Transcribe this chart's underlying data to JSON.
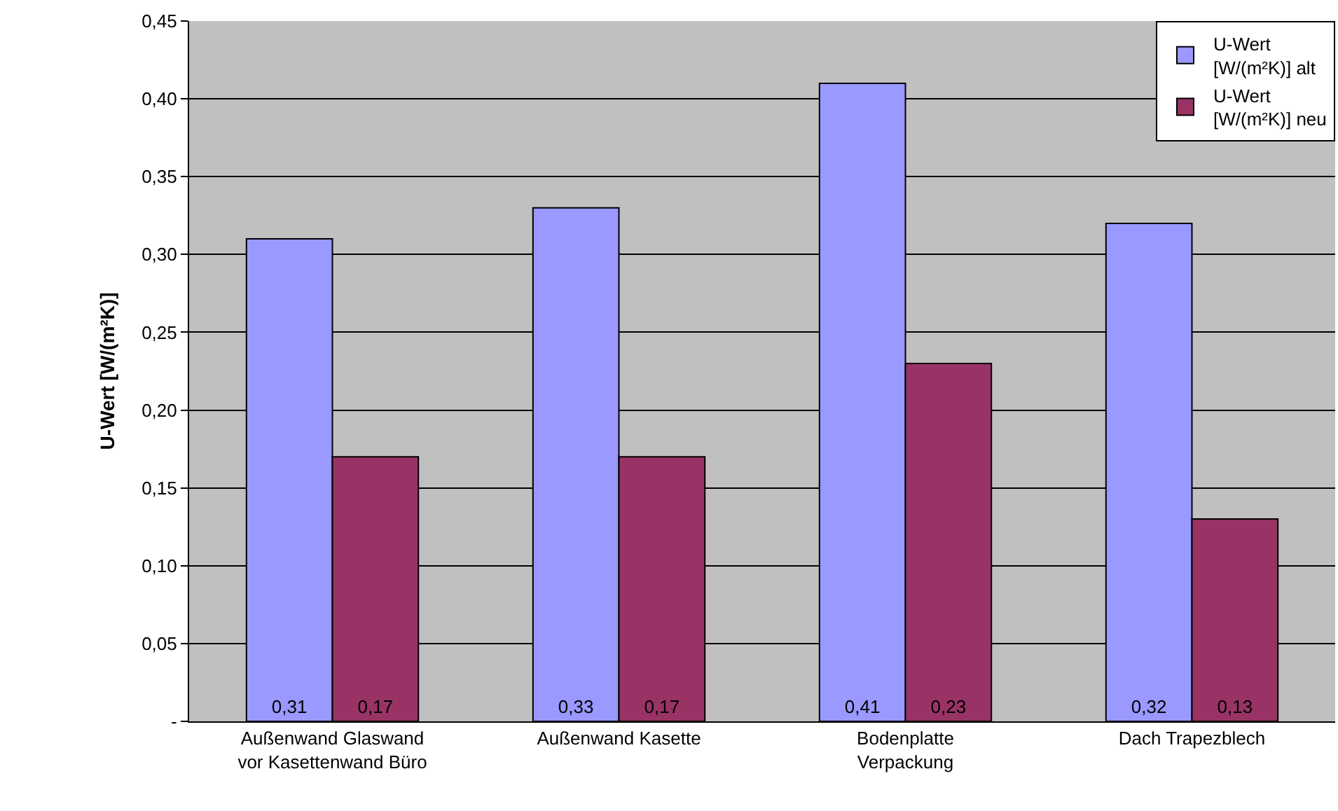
{
  "chart_data": {
    "type": "bar",
    "ylabel": "U-Wert [W/(m²K)]",
    "categories": [
      "Außenwand Glaswand\nvor Kasettenwand Büro",
      "Außenwand Kasette",
      "Bodenplatte\nVerpackung",
      "Dach Trapezblech"
    ],
    "series": [
      {
        "name": "U-Wert\n[W/(m²K)] alt",
        "color": "#9999ff",
        "values": [
          0.31,
          0.33,
          0.41,
          0.32
        ],
        "value_labels": [
          "0,31",
          "0,33",
          "0,41",
          "0,32"
        ]
      },
      {
        "name": "U-Wert\n[W/(m²K)] neu",
        "color": "#993366",
        "values": [
          0.17,
          0.17,
          0.23,
          0.13
        ],
        "value_labels": [
          "0,17",
          "0,17",
          "0,23",
          "0,13"
        ]
      }
    ],
    "ylim": [
      0,
      0.45
    ],
    "yticks": [
      {
        "value": 0,
        "label": "-"
      },
      {
        "value": 0.05,
        "label": "0,05"
      },
      {
        "value": 0.1,
        "label": "0,10"
      },
      {
        "value": 0.15,
        "label": "0,15"
      },
      {
        "value": 0.2,
        "label": "0,20"
      },
      {
        "value": 0.25,
        "label": "0,25"
      },
      {
        "value": 0.3,
        "label": "0,30"
      },
      {
        "value": 0.35,
        "label": "0,35"
      },
      {
        "value": 0.4,
        "label": "0,40"
      },
      {
        "value": 0.45,
        "label": "0,45"
      }
    ],
    "grid": "y",
    "legend": "top right"
  }
}
